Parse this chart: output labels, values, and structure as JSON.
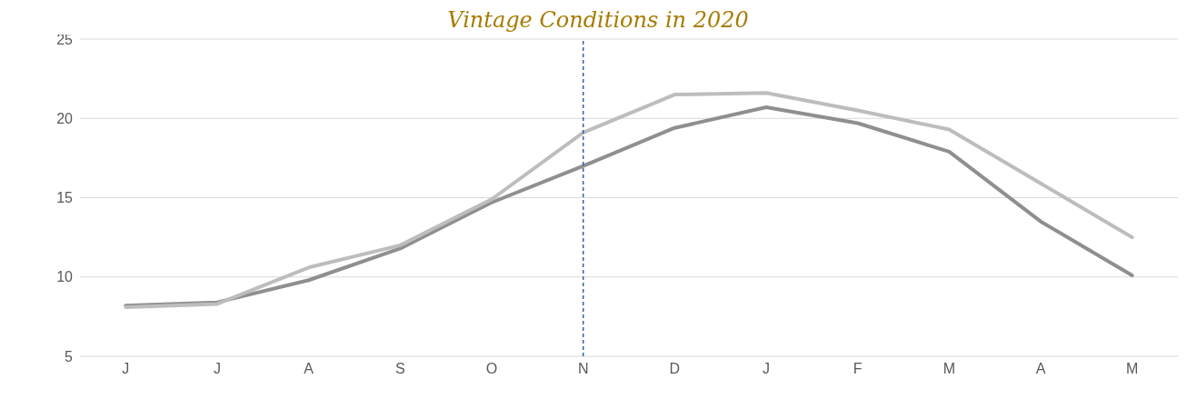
{
  "chart_data": {
    "type": "line",
    "title": "Vintage Conditions in 2020",
    "categories": [
      "J",
      "J",
      "A",
      "S",
      "O",
      "N",
      "D",
      "J",
      "F",
      "M",
      "A",
      "M"
    ],
    "series": [
      {
        "color": "#8f8f8f",
        "values": [
          8.2,
          8.4,
          9.8,
          11.8,
          14.7,
          17.0,
          19.4,
          20.7,
          19.7,
          17.9,
          13.5,
          10.1
        ]
      },
      {
        "color": "#bdbdbd",
        "values": [
          8.1,
          8.3,
          10.6,
          12.0,
          14.9,
          19.1,
          21.5,
          21.6,
          20.5,
          19.3,
          15.9,
          12.5
        ]
      }
    ],
    "ylim": [
      5,
      25
    ],
    "yticks": [
      5,
      10,
      15,
      20,
      25
    ],
    "grid": "y",
    "marker": "none",
    "line_style": "solid",
    "ref_lines": [
      {
        "axis": "x",
        "value": "N",
        "color": "#2f5fb0",
        "line_style": "dashed"
      }
    ]
  }
}
